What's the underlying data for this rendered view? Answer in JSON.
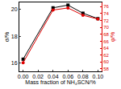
{
  "chart_data": {
    "type": "line",
    "x_label": "Mass fraction of NH₄SCN/%",
    "y_label": "σ/%",
    "y2_label": "φ/%",
    "x": [
      0,
      0.04,
      0.06,
      0.08,
      0.1
    ],
    "series": [
      {
        "name": "σ",
        "color": "#000000",
        "marker": "square",
        "values": [
          16.3,
          20.1,
          20.3,
          19.7,
          19.3
        ]
      },
      {
        "name": "φ",
        "color": "#e00000",
        "marker": "circle",
        "axis": "y2",
        "values": [
          59.8,
          75.0,
          75.6,
          73.5,
          72.4
        ]
      }
    ],
    "xlim": [
      -0.005,
      0.105
    ],
    "xticks": [
      {
        "value": 0,
        "label": "0.00"
      },
      {
        "value": 0.02,
        "label": "0.02"
      },
      {
        "value": 0.04,
        "label": "0.04"
      },
      {
        "value": 0.06,
        "label": "0.06"
      },
      {
        "value": 0.08,
        "label": "0.08"
      },
      {
        "value": 0.1,
        "label": "0.10"
      }
    ],
    "ylim": [
      15.4,
      20.5
    ],
    "yticks": [
      16,
      18,
      20
    ],
    "y2lim": [
      57.3,
      77.2
    ],
    "y2ticks": [
      58,
      60,
      62,
      64,
      66,
      68,
      70,
      72,
      74,
      76
    ],
    "grid": false
  }
}
